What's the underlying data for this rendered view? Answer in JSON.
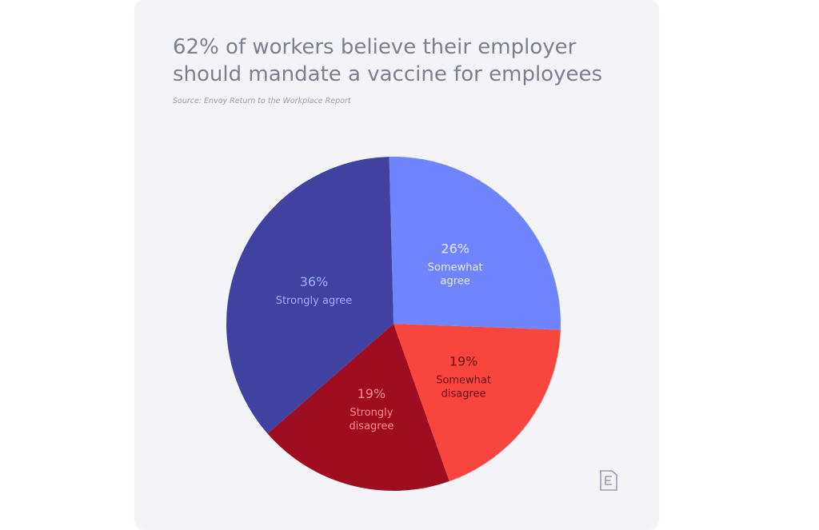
{
  "header": {
    "title_line1": "62% of workers believe their employer",
    "title_line2": "should mandate a vaccine for employees",
    "source": "Source: Envoy Return to the Workplace Report"
  },
  "logo": {
    "icon": "envoy-e-logo-icon",
    "color": "#9a9cab"
  },
  "chart_data": {
    "type": "pie",
    "title": "62% of workers believe their employer should mandate a vaccine for employees",
    "slices": [
      {
        "value": 26,
        "label": "26%",
        "name": "Somewhat agree",
        "name_lines": [
          "Somewhat",
          "agree"
        ],
        "color": "#6e85ff",
        "label_color": "#e6eaff"
      },
      {
        "value": 19,
        "label": "19%",
        "name": "Somewhat disagree",
        "name_lines": [
          "Somewhat",
          "disagree"
        ],
        "color": "#f8453e",
        "label_color": "#6b0d15"
      },
      {
        "value": 19,
        "label": "19%",
        "name": "Strongly disagree",
        "name_lines": [
          "Strongly",
          "disagree"
        ],
        "color": "#9e0e20",
        "label_color": "#ff8a8a"
      },
      {
        "value": 36,
        "label": "36%",
        "name": "Strongly agree",
        "name_lines": [
          "Strongly agree"
        ],
        "color": "#4041a0",
        "label_color": "#9fb0ff"
      }
    ]
  }
}
